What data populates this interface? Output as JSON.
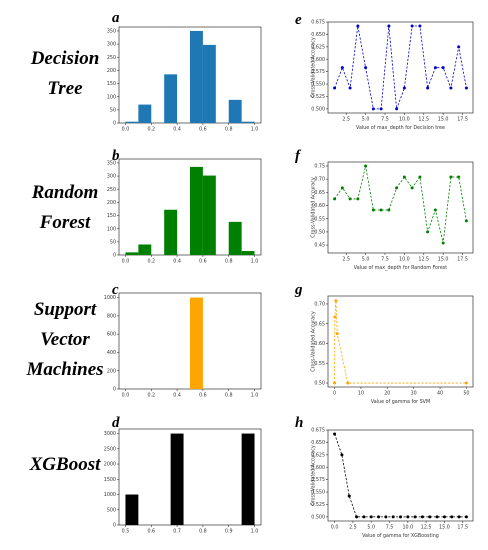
{
  "row_labels": [
    {
      "name": "row-label-decision-tree",
      "lines": [
        "Decision",
        "Tree"
      ]
    },
    {
      "name": "row-label-random-forest",
      "lines": [
        "Random",
        "Forest"
      ]
    },
    {
      "name": "row-label-svm",
      "lines": [
        "Support",
        "Vector",
        "Machines"
      ]
    },
    {
      "name": "row-label-xgboost",
      "lines": [
        "XGBoost"
      ]
    }
  ],
  "chart_data": [
    {
      "id": "a",
      "type": "bar",
      "color": "#1f77b4",
      "bars": [
        {
          "x0": 0.0,
          "x1": 0.1,
          "v": 5
        },
        {
          "x0": 0.1,
          "x1": 0.2,
          "v": 70
        },
        {
          "x0": 0.3,
          "x1": 0.4,
          "v": 185
        },
        {
          "x0": 0.5,
          "x1": 0.6,
          "v": 350
        },
        {
          "x0": 0.6,
          "x1": 0.7,
          "v": 297
        },
        {
          "x0": 0.8,
          "x1": 0.9,
          "v": 88
        },
        {
          "x0": 0.9,
          "x1": 1.0,
          "v": 5
        }
      ],
      "xlim": [
        -0.05,
        1.05
      ],
      "ylim": [
        0,
        365
      ],
      "xticks": [
        0.0,
        0.2,
        0.4,
        0.6,
        0.8,
        1.0
      ],
      "xtick_labels": [
        "0.0",
        "0.2",
        "0.4",
        "0.6",
        "0.8",
        "1.0"
      ],
      "yticks": [
        0,
        50,
        100,
        150,
        200,
        250,
        300,
        350
      ],
      "ytick_labels": [
        "0",
        "50",
        "100",
        "150",
        "200",
        "250",
        "300",
        "350"
      ]
    },
    {
      "id": "b",
      "type": "bar",
      "color": "#008000",
      "bars": [
        {
          "x0": 0.0,
          "x1": 0.1,
          "v": 10
        },
        {
          "x0": 0.1,
          "x1": 0.2,
          "v": 40
        },
        {
          "x0": 0.3,
          "x1": 0.4,
          "v": 172
        },
        {
          "x0": 0.5,
          "x1": 0.6,
          "v": 335
        },
        {
          "x0": 0.6,
          "x1": 0.7,
          "v": 302
        },
        {
          "x0": 0.8,
          "x1": 0.9,
          "v": 126
        },
        {
          "x0": 0.9,
          "x1": 1.0,
          "v": 15
        }
      ],
      "xlim": [
        -0.05,
        1.05
      ],
      "ylim": [
        0,
        365
      ],
      "xticks": [
        0.0,
        0.2,
        0.4,
        0.6,
        0.8,
        1.0
      ],
      "xtick_labels": [
        "0.0",
        "0.2",
        "0.4",
        "0.6",
        "0.8",
        "1.0"
      ],
      "yticks": [
        0,
        50,
        100,
        150,
        200,
        250,
        300,
        350
      ],
      "ytick_labels": [
        "0",
        "50",
        "100",
        "150",
        "200",
        "250",
        "300",
        "350"
      ]
    },
    {
      "id": "c",
      "type": "bar",
      "color": "#ffa500",
      "bars": [
        {
          "x0": 0.5,
          "x1": 0.6,
          "v": 1000
        }
      ],
      "xlim": [
        -0.05,
        1.05
      ],
      "ylim": [
        0,
        1050
      ],
      "xticks": [
        0.0,
        0.2,
        0.4,
        0.6,
        0.8,
        1.0
      ],
      "xtick_labels": [
        "0.0",
        "0.2",
        "0.4",
        "0.6",
        "0.8",
        "1.0"
      ],
      "yticks": [
        0,
        200,
        400,
        600,
        800,
        1000
      ],
      "ytick_labels": [
        "0",
        "200",
        "400",
        "600",
        "800",
        "1000"
      ]
    },
    {
      "id": "d",
      "type": "bar",
      "color": "#000000",
      "bars": [
        {
          "x0": 0.5,
          "x1": 0.55,
          "v": 1000
        },
        {
          "x0": 0.675,
          "x1": 0.725,
          "v": 3000
        },
        {
          "x0": 0.95,
          "x1": 1.0,
          "v": 3000
        }
      ],
      "xlim": [
        0.475,
        1.025
      ],
      "ylim": [
        0,
        3150
      ],
      "xticks": [
        0.5,
        0.6,
        0.7,
        0.8,
        0.9,
        1.0
      ],
      "xtick_labels": [
        "0.5",
        "0.6",
        "0.7",
        "0.8",
        "0.9",
        "1.0"
      ],
      "yticks": [
        0,
        500,
        1000,
        1500,
        2000,
        2500,
        3000
      ],
      "ytick_labels": [
        "0",
        "500",
        "1000",
        "1500",
        "2000",
        "2500",
        "3000"
      ]
    },
    {
      "id": "e",
      "type": "line",
      "color": "#0000cc",
      "x": [
        1,
        2,
        3,
        4,
        5,
        6,
        7,
        8,
        9,
        10,
        11,
        12,
        13,
        14,
        15,
        16,
        17,
        18
      ],
      "y": [
        0.542,
        0.583,
        0.542,
        0.667,
        0.583,
        0.5,
        0.5,
        0.667,
        0.5,
        0.542,
        0.667,
        0.667,
        0.542,
        0.583,
        0.583,
        0.542,
        0.625,
        0.542
      ],
      "xlim": [
        0.15,
        18.85
      ],
      "ylim": [
        0.4917,
        0.675
      ],
      "xticks": [
        2.5,
        5.0,
        7.5,
        10.0,
        12.5,
        15.0,
        17.5
      ],
      "xtick_labels": [
        "2.5",
        "5.0",
        "7.5",
        "10.0",
        "12.5",
        "15.0",
        "17.5"
      ],
      "yticks": [
        0.5,
        0.525,
        0.55,
        0.575,
        0.6,
        0.625,
        0.65,
        0.675
      ],
      "ytick_labels": [
        "0.500",
        "0.525",
        "0.550",
        "0.575",
        "0.600",
        "0.625",
        "0.650",
        "0.675"
      ],
      "xlabel": "Value of max_depth for Decision tree",
      "ylabel": "Cross-Validated Accuracy"
    },
    {
      "id": "f",
      "type": "line",
      "color": "#008000",
      "x": [
        1,
        2,
        3,
        4,
        5,
        6,
        7,
        8,
        9,
        10,
        11,
        12,
        13,
        14,
        15,
        16,
        17,
        18
      ],
      "y": [
        0.625,
        0.667,
        0.625,
        0.625,
        0.75,
        0.583,
        0.583,
        0.583,
        0.667,
        0.708,
        0.667,
        0.708,
        0.5,
        0.583,
        0.458,
        0.708,
        0.708,
        0.542
      ],
      "xlim": [
        0.15,
        18.85
      ],
      "ylim": [
        0.42,
        0.765
      ],
      "xticks": [
        2.5,
        5.0,
        7.5,
        10.0,
        12.5,
        15.0,
        17.5
      ],
      "xtick_labels": [
        "2.5",
        "5.0",
        "7.5",
        "10.0",
        "12.5",
        "15.0",
        "17.5"
      ],
      "yticks": [
        0.45,
        0.5,
        0.55,
        0.6,
        0.65,
        0.7,
        0.75
      ],
      "ytick_labels": [
        "0.45",
        "0.50",
        "0.55",
        "0.60",
        "0.65",
        "0.70",
        "0.75"
      ],
      "xlabel": "Value of max_depth for Random Forest",
      "ylabel": "Cross-Validated Accuracy"
    },
    {
      "id": "g",
      "type": "line",
      "color": "#ffa500",
      "x": [
        0,
        0.1,
        0.5,
        1,
        5,
        50
      ],
      "y": [
        0.5,
        0.667,
        0.708,
        0.625,
        0.5,
        0.5
      ],
      "xlim": [
        -2.5,
        52.5
      ],
      "ylim": [
        0.49,
        0.72
      ],
      "xticks": [
        0,
        10,
        20,
        30,
        40,
        50
      ],
      "xtick_labels": [
        "0",
        "10",
        "20",
        "30",
        "40",
        "50"
      ],
      "yticks": [
        0.5,
        0.55,
        0.6,
        0.65,
        0.7
      ],
      "ytick_labels": [
        "0.50",
        "0.55",
        "0.60",
        "0.65",
        "0.70"
      ],
      "xlabel": "Value of gamma for SVM",
      "ylabel": "Cross-Validated Accuracy"
    },
    {
      "id": "h",
      "type": "line",
      "color": "#000000",
      "x": [
        0,
        1,
        2,
        3,
        4,
        5,
        6,
        7,
        8,
        9,
        10,
        11,
        12,
        13,
        14,
        15,
        16,
        17,
        18
      ],
      "y": [
        0.667,
        0.625,
        0.542,
        0.5,
        0.5,
        0.5,
        0.5,
        0.5,
        0.5,
        0.5,
        0.5,
        0.5,
        0.5,
        0.5,
        0.5,
        0.5,
        0.5,
        0.5,
        0.5
      ],
      "xlim": [
        -0.9,
        18.9
      ],
      "ylim": [
        0.4917,
        0.675
      ],
      "xticks": [
        0,
        2.5,
        5,
        7.5,
        10,
        12.5,
        15,
        17.5
      ],
      "xtick_labels": [
        "0.0",
        "2.5",
        "5.0",
        "7.5",
        "10.0",
        "12.5",
        "15.0",
        "17.5"
      ],
      "yticks": [
        0.5,
        0.525,
        0.55,
        0.575,
        0.6,
        0.625,
        0.65,
        0.675
      ],
      "ytick_labels": [
        "0.500",
        "0.525",
        "0.550",
        "0.575",
        "0.600",
        "0.625",
        "0.650",
        "0.675"
      ],
      "xlabel": "Value of gamma for XGBoosting",
      "ylabel": "Cross-Validated Accuracy"
    }
  ]
}
